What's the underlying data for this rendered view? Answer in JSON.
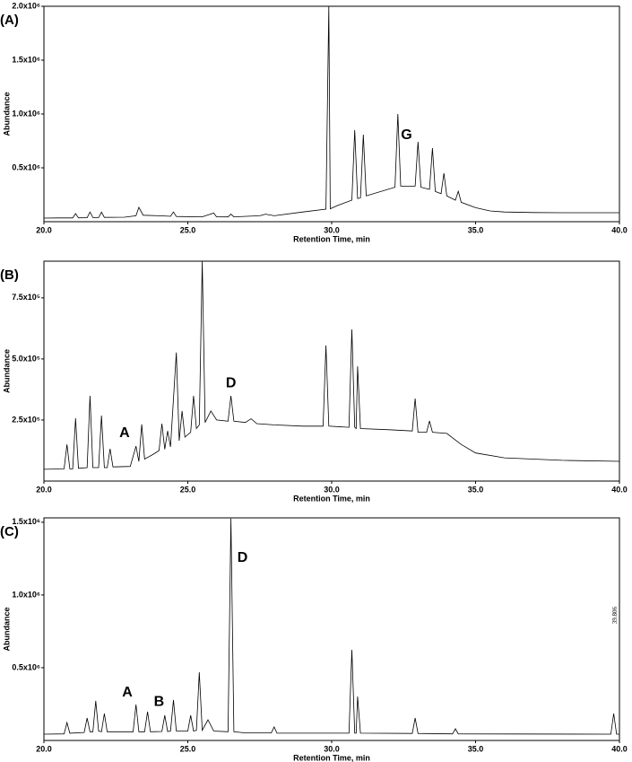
{
  "chart_data": [
    {
      "type": "line",
      "title": "(A)",
      "ylabel": "Abundance",
      "xlabel": "Retention Time, min",
      "color": "#000000",
      "grid": false,
      "xlim": [
        20,
        40
      ],
      "xticks": [
        {
          "value": 20,
          "label": "20.0"
        },
        {
          "value": 25,
          "label": "25.0"
        },
        {
          "value": 30,
          "label": "30.0"
        },
        {
          "value": 35,
          "label": "35.0"
        },
        {
          "value": 40,
          "label": "40.0"
        }
      ],
      "ylim": [
        0,
        2000000
      ],
      "yticks": [
        {
          "value": 500000,
          "label": "0.5x10⁶"
        },
        {
          "value": 1000000,
          "label": "1.0x10⁶"
        },
        {
          "value": 1500000,
          "label": "1.5x10⁶"
        },
        {
          "value": 2000000,
          "label": "2.0x10⁶"
        }
      ],
      "x": [
        20.0,
        20.5,
        21.0,
        21.1,
        21.2,
        21.5,
        21.6,
        21.7,
        21.9,
        22.0,
        22.1,
        22.8,
        23.2,
        23.3,
        23.45,
        24.0,
        24.4,
        24.5,
        24.6,
        25.5,
        25.9,
        26.0,
        26.4,
        26.5,
        26.6,
        27.5,
        27.7,
        28.0,
        29.0,
        29.8,
        29.9,
        29.95,
        30.2,
        30.7,
        30.8,
        30.9,
        31.0,
        31.1,
        31.2,
        32.2,
        32.3,
        32.4,
        32.9,
        33.0,
        33.1,
        33.4,
        33.5,
        33.6,
        33.8,
        33.9,
        34.0,
        34.3,
        34.4,
        34.5,
        35.0,
        35.5,
        36.0,
        37.0,
        38.0,
        40.0
      ],
      "values": [
        33000,
        35000,
        35000,
        75000,
        36000,
        37000,
        90000,
        38000,
        38000,
        88000,
        40000,
        42000,
        55000,
        133000,
        60000,
        55000,
        50000,
        90000,
        48000,
        45000,
        80000,
        45000,
        44000,
        70000,
        45000,
        55000,
        70000,
        55000,
        90000,
        117000,
        2000000,
        120000,
        150000,
        200000,
        850000,
        215000,
        220000,
        808000,
        240000,
        320000,
        1000000,
        330000,
        330000,
        742000,
        320000,
        300000,
        683000,
        280000,
        260000,
        450000,
        240000,
        200000,
        283000,
        180000,
        130000,
        100000,
        90000,
        85000,
        83000,
        83000
      ],
      "annotations": [
        {
          "text": "G",
          "x": 32.6,
          "y": 800000
        }
      ]
    },
    {
      "type": "line",
      "title": "(B)",
      "ylabel": "Abundance",
      "xlabel": "Retention Time, min",
      "color": "#000000",
      "grid": false,
      "xlim": [
        20,
        40
      ],
      "xticks": [
        {
          "value": 20,
          "label": "20.0"
        },
        {
          "value": 25,
          "label": "25.0"
        },
        {
          "value": 30,
          "label": "30.0"
        },
        {
          "value": 35,
          "label": "35.0"
        },
        {
          "value": 40,
          "label": "40.0"
        }
      ],
      "ylim": [
        0,
        900000
      ],
      "yticks": [
        {
          "value": 250000,
          "label": "2.5x10⁵"
        },
        {
          "value": 500000,
          "label": "5.0x10⁵"
        },
        {
          "value": 750000,
          "label": "7.5x10⁵"
        }
      ],
      "x": [
        20.0,
        20.7,
        20.8,
        20.9,
        21.0,
        21.1,
        21.2,
        21.5,
        21.6,
        21.7,
        21.9,
        22.0,
        22.1,
        22.2,
        22.3,
        22.4,
        23.0,
        23.2,
        23.3,
        23.4,
        23.5,
        23.8,
        24.0,
        24.1,
        24.2,
        24.3,
        24.4,
        24.6,
        24.7,
        24.8,
        24.9,
        25.1,
        25.2,
        25.3,
        25.4,
        25.5,
        25.6,
        25.8,
        26.0,
        26.4,
        26.5,
        26.6,
        27.0,
        27.2,
        27.4,
        28.0,
        29.0,
        29.7,
        29.8,
        29.9,
        30.6,
        30.7,
        30.8,
        30.85,
        30.9,
        31.0,
        32.0,
        32.8,
        32.9,
        33.0,
        33.3,
        33.4,
        33.5,
        34.0,
        34.5,
        35.0,
        36.0,
        38.0,
        40.0
      ],
      "values": [
        48000,
        50000,
        150000,
        50000,
        50000,
        257000,
        52000,
        55000,
        349000,
        55000,
        55000,
        268000,
        55000,
        55000,
        132000,
        58000,
        60000,
        143000,
        80000,
        232000,
        90000,
        110000,
        125000,
        235000,
        130000,
        205000,
        140000,
        526000,
        165000,
        287000,
        180000,
        200000,
        349000,
        215000,
        230000,
        900000,
        240000,
        287000,
        250000,
        245000,
        349000,
        245000,
        240000,
        255000,
        235000,
        230000,
        225000,
        225000,
        555000,
        225000,
        220000,
        621000,
        220000,
        215000,
        470000,
        215000,
        210000,
        205000,
        338000,
        200000,
        200000,
        246000,
        200000,
        195000,
        150000,
        115000,
        95000,
        85000,
        81000
      ],
      "annotations": [
        {
          "text": "A",
          "x": 22.8,
          "y": 195000
        },
        {
          "text": "D",
          "x": 26.5,
          "y": 400000
        }
      ]
    },
    {
      "type": "line",
      "title": "(C)",
      "ylabel": "Abundance",
      "xlabel": "Retention Time, min",
      "color": "#000000",
      "grid": false,
      "xlim": [
        20,
        40
      ],
      "xticks": [
        {
          "value": 20,
          "label": "20.0"
        },
        {
          "value": 25,
          "label": "25.0"
        },
        {
          "value": 30,
          "label": "30.0"
        },
        {
          "value": 35,
          "label": "35.0"
        },
        {
          "value": 40,
          "label": "40.0"
        }
      ],
      "ylim": [
        0,
        1530000
      ],
      "yticks": [
        {
          "value": 500000,
          "label": "0.5x10⁶"
        },
        {
          "value": 1000000,
          "label": "1.0x10⁶"
        },
        {
          "value": 1500000,
          "label": "1.5x10⁶"
        }
      ],
      "x": [
        20.0,
        20.7,
        20.8,
        20.9,
        21.4,
        21.5,
        21.6,
        21.7,
        21.8,
        21.9,
        22.0,
        22.1,
        22.2,
        23.1,
        23.2,
        23.3,
        23.5,
        23.6,
        23.7,
        24.1,
        24.2,
        24.3,
        24.4,
        24.5,
        24.6,
        25.0,
        25.1,
        25.2,
        25.3,
        25.4,
        25.5,
        25.7,
        25.9,
        26.4,
        26.5,
        26.6,
        27.0,
        27.9,
        28.0,
        28.1,
        30.6,
        30.7,
        30.8,
        30.85,
        30.9,
        31.0,
        32.8,
        32.9,
        33.0,
        34.2,
        34.3,
        34.4,
        39.7,
        39.8,
        39.9,
        40.0
      ],
      "values": [
        43000,
        45000,
        123000,
        50000,
        55000,
        154000,
        60000,
        60000,
        272000,
        65000,
        60000,
        185000,
        60000,
        60000,
        247000,
        60000,
        60000,
        198000,
        60000,
        62000,
        173000,
        62000,
        65000,
        278000,
        65000,
        65000,
        173000,
        65000,
        70000,
        469000,
        70000,
        142000,
        65000,
        60000,
        1525000,
        60000,
        52000,
        52000,
        93000,
        50000,
        50000,
        623000,
        50000,
        50000,
        302000,
        50000,
        48000,
        154000,
        48000,
        45000,
        80000,
        45000,
        43000,
        185000,
        43000,
        43000
      ],
      "annotations": [
        {
          "text": "A",
          "x": 22.9,
          "y": 327000
        },
        {
          "text": "B",
          "x": 24.0,
          "y": 265000
        },
        {
          "text": "D",
          "x": 26.9,
          "y": 1253000
        },
        {
          "text": "39.806",
          "x": 39.85,
          "y": 860000
        }
      ]
    }
  ]
}
